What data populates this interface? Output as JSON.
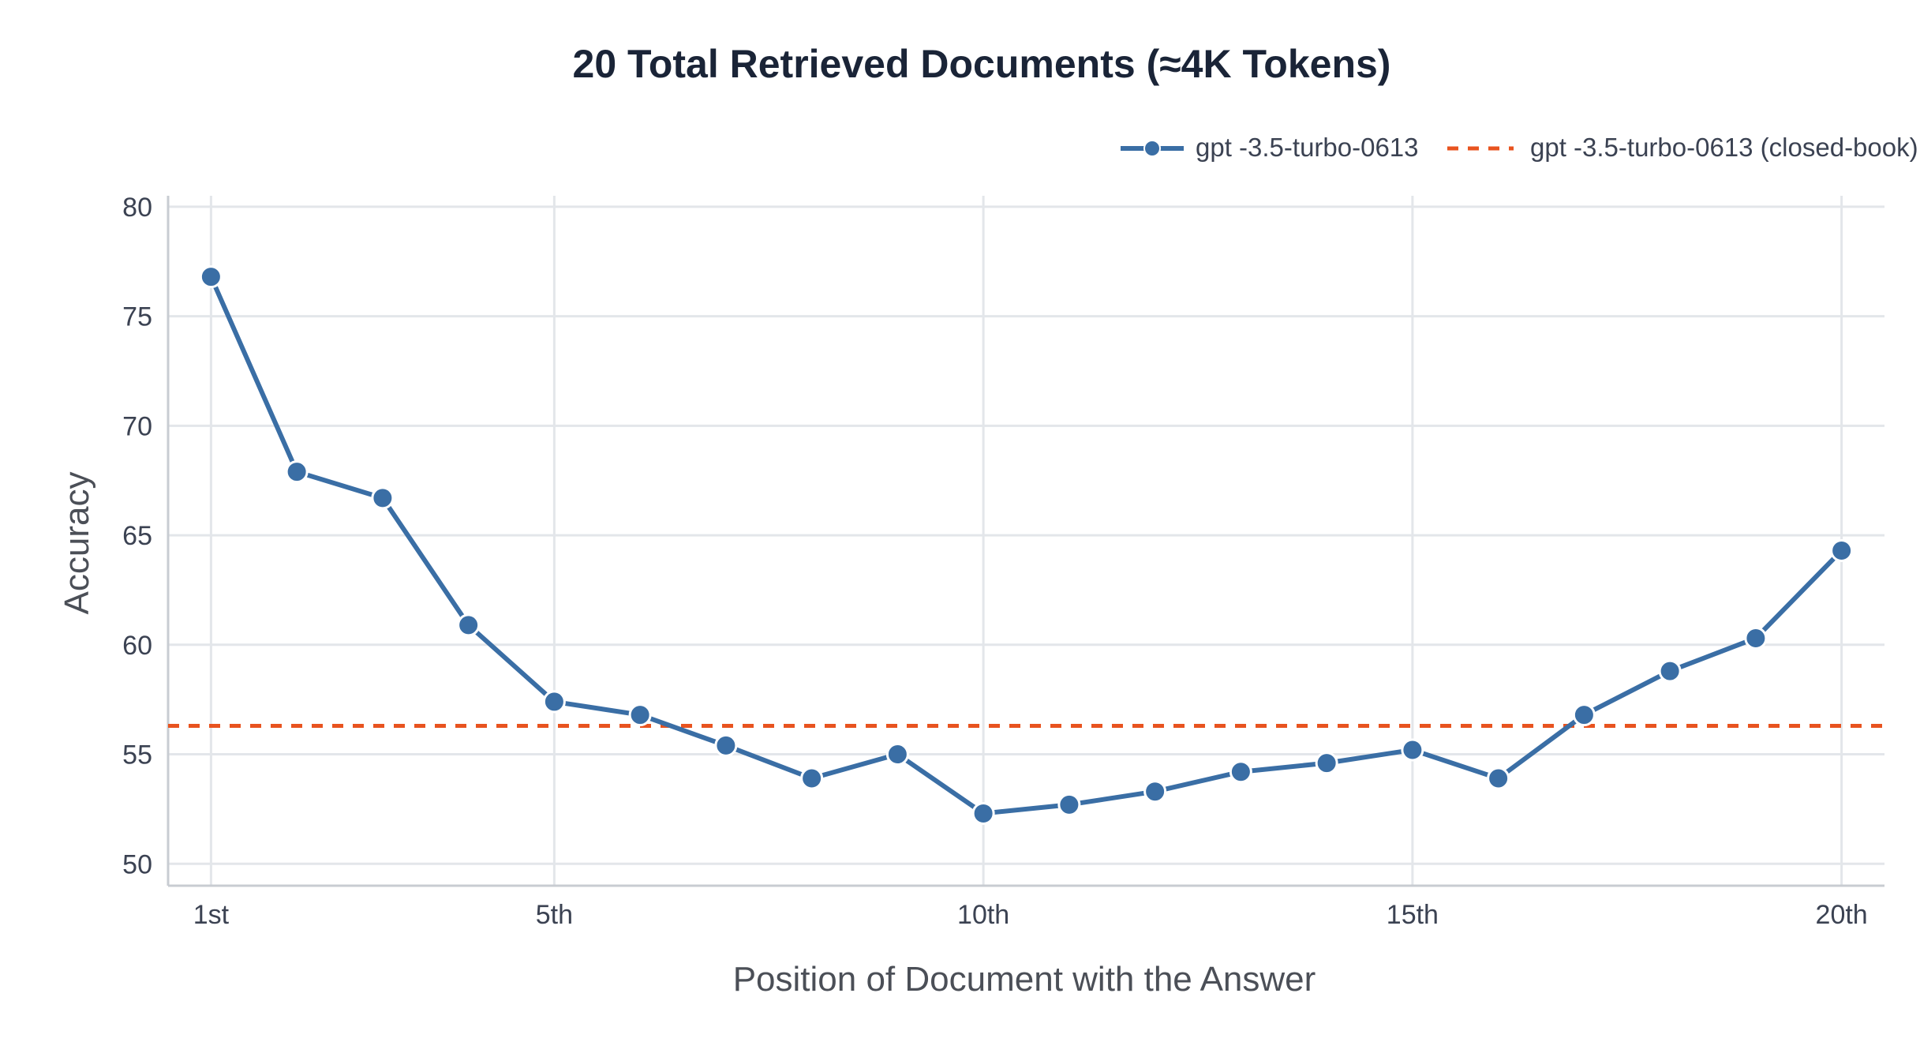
{
  "chart_data": {
    "type": "line",
    "title": "20 Total Retrieved Documents (≈4K Tokens)",
    "xlabel": "Position of Document with the Answer",
    "ylabel": "Accuracy",
    "x": [
      1,
      2,
      3,
      4,
      5,
      6,
      7,
      8,
      9,
      10,
      11,
      12,
      13,
      14,
      15,
      16,
      17,
      18,
      19,
      20
    ],
    "x_ticks": [
      1,
      5,
      10,
      15,
      20
    ],
    "x_tick_labels": [
      "1st",
      "5th",
      "10th",
      "15th",
      "20th"
    ],
    "y_ticks": [
      50,
      55,
      60,
      65,
      70,
      75,
      80
    ],
    "xlim": [
      0.5,
      20.5
    ],
    "ylim": [
      49,
      80.5
    ],
    "grid": true,
    "legend_position": "top-right",
    "series": [
      {
        "name": "gpt -3.5-turbo-0613",
        "color": "#3a6ea5",
        "style": "line-with-markers",
        "values": [
          76.8,
          67.9,
          66.7,
          60.9,
          57.4,
          56.8,
          55.4,
          53.9,
          55.0,
          52.3,
          52.7,
          53.3,
          54.2,
          54.6,
          55.2,
          53.9,
          56.8,
          58.8,
          60.3,
          64.3
        ]
      },
      {
        "name": "gpt -3.5-turbo-0613 (closed-book)",
        "color": "#e8531f",
        "style": "dashed-horizontal",
        "value": 56.3
      }
    ]
  }
}
